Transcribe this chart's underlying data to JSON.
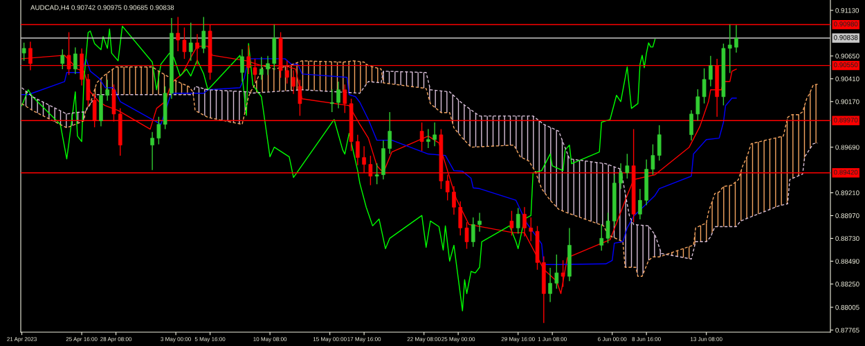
{
  "chart_data": {
    "type": "candlestick",
    "title": "AUDCAD,H4 0.90742 0.90975 0.90685 0.90838",
    "x": [
      "2023-04-21T04:00",
      "2023-04-21T16:00",
      "2023-04-24T04:00",
      "2023-04-24T16:00",
      "2023-04-25T04:00",
      "2023-04-25T16:00",
      "2023-04-26T04:00",
      "2023-04-26T16:00",
      "2023-04-27T04:00",
      "2023-04-27T16:00",
      "2023-04-28T04:00",
      "2023-04-28T16:00",
      "2023-05-01T04:00",
      "2023-05-01T16:00",
      "2023-05-02T04:00",
      "2023-05-02T16:00",
      "2023-05-03T04:00",
      "2023-05-03T16:00",
      "2023-05-04T04:00",
      "2023-05-04T16:00",
      "2023-05-05T04:00",
      "2023-05-05T16:00",
      "2023-05-08T04:00",
      "2023-05-08T16:00",
      "2023-05-09T04:00",
      "2023-05-09T16:00",
      "2023-05-10T04:00",
      "2023-05-10T16:00",
      "2023-05-11T04:00",
      "2023-05-11T16:00",
      "2023-05-12T04:00",
      "2023-05-12T16:00",
      "2023-05-15T04:00",
      "2023-05-15T16:00",
      "2023-05-16T04:00",
      "2023-05-16T16:00",
      "2023-05-17T04:00",
      "2023-05-17T16:00",
      "2023-05-18T04:00",
      "2023-05-18T16:00",
      "2023-05-19T04:00",
      "2023-05-19T16:00",
      "2023-05-22T04:00",
      "2023-05-22T16:00",
      "2023-05-23T04:00",
      "2023-05-23T16:00",
      "2023-05-24T04:00",
      "2023-05-24T16:00",
      "2023-05-25T04:00",
      "2023-05-25T16:00",
      "2023-05-26T04:00",
      "2023-05-26T16:00",
      "2023-05-29T04:00",
      "2023-05-29T16:00",
      "2023-05-30T04:00",
      "2023-05-30T16:00",
      "2023-05-31T04:00",
      "2023-05-31T16:00",
      "2023-06-01T04:00",
      "2023-06-01T16:00",
      "2023-06-02T04:00",
      "2023-06-02T16:00",
      "2023-06-05T04:00",
      "2023-06-05T16:00",
      "2023-06-06T04:00",
      "2023-06-06T16:00",
      "2023-06-07T04:00",
      "2023-06-07T16:00",
      "2023-06-08T04:00",
      "2023-06-08T16:00",
      "2023-06-09T04:00",
      "2023-06-09T16:00",
      "2023-06-12T04:00",
      "2023-06-12T16:00",
      "2023-06-13T04:00",
      "2023-06-13T16:00",
      "2023-06-14T04:00",
      "2023-06-14T16:00",
      "2023-06-15T04:00",
      "2023-06-15T16:00"
    ],
    "ohlc": [
      [
        0.9068,
        0.9079,
        0.906,
        0.9073
      ],
      [
        0.9073,
        0.908,
        0.905,
        0.9057
      ],
      [
        0.9057,
        0.9072,
        0.9051,
        0.90657
      ],
      [
        0.90657,
        0.909,
        0.9045,
        0.90512
      ],
      [
        0.90512,
        0.9074,
        0.9046,
        0.90672
      ],
      [
        0.90672,
        0.9073,
        0.9034,
        0.90403
      ],
      [
        0.90403,
        0.9046,
        0.9012,
        0.90185
      ],
      [
        0.90185,
        0.9025,
        0.899,
        0.89967
      ],
      [
        0.89967,
        0.9031,
        0.8991,
        0.90236
      ],
      [
        0.90236,
        0.904,
        0.9018,
        0.90294
      ],
      [
        0.90294,
        0.9035,
        0.8996,
        0.90039
      ],
      [
        0.90039,
        0.901,
        0.896,
        0.89712
      ],
      [
        0.89712,
        0.8985,
        0.8945,
        0.89785
      ],
      [
        0.89785,
        0.9001,
        0.8972,
        0.8993
      ],
      [
        0.8993,
        0.9033,
        0.8988,
        0.90258
      ],
      [
        0.90258,
        0.9105,
        0.902,
        0.9089
      ],
      [
        0.9089,
        0.9106,
        0.907,
        0.90817
      ],
      [
        0.90817,
        0.9095,
        0.9062,
        0.90694
      ],
      [
        0.90694,
        0.91,
        0.906,
        0.90788
      ],
      [
        0.90788,
        0.9088,
        0.9056,
        0.9073
      ],
      [
        0.9073,
        0.9106,
        0.9068,
        0.90912
      ],
      [
        0.90912,
        0.9098,
        0.904,
        0.90476
      ],
      [
        0.90476,
        0.9072,
        0.9038,
        0.90643
      ],
      [
        0.90643,
        0.9076,
        0.9046,
        0.90527
      ],
      [
        0.90527,
        0.9062,
        0.9038,
        0.90454
      ],
      [
        0.90454,
        0.9064,
        0.904,
        0.90512
      ],
      [
        0.90512,
        0.9065,
        0.9045,
        0.9057
      ],
      [
        0.9057,
        0.9098,
        0.905,
        0.90839
      ],
      [
        0.90839,
        0.909,
        0.9042,
        0.90497
      ],
      [
        0.90497,
        0.906,
        0.9036,
        0.90425
      ],
      [
        0.90425,
        0.905,
        0.9025,
        0.9033
      ],
      [
        0.9033,
        0.904,
        0.9002,
        0.90148
      ],
      [
        0.90148,
        0.903,
        0.9006,
        0.9016
      ],
      [
        0.9016,
        0.9038,
        0.901,
        0.90294
      ],
      [
        0.90294,
        0.9035,
        0.9005,
        0.90148
      ],
      [
        0.90148,
        0.902,
        0.8965,
        0.89749
      ],
      [
        0.89749,
        0.8982,
        0.895,
        0.89581
      ],
      [
        0.89581,
        0.897,
        0.8942,
        0.89509
      ],
      [
        0.89509,
        0.896,
        0.8929,
        0.89385
      ],
      [
        0.89385,
        0.8952,
        0.893,
        0.894
      ],
      [
        0.894,
        0.8976,
        0.8935,
        0.89676
      ],
      [
        0.89676,
        0.9006,
        0.8962,
        0.89858
      ],
      [
        0.89858,
        0.8995,
        0.8965,
        0.89749
      ],
      [
        0.89749,
        0.8988,
        0.8968,
        0.8977
      ],
      [
        0.8977,
        0.8995,
        0.897,
        0.8982
      ],
      [
        0.8982,
        0.8988,
        0.8925,
        0.89334
      ],
      [
        0.89334,
        0.894,
        0.8913,
        0.89218
      ],
      [
        0.89218,
        0.8928,
        0.8898,
        0.89058
      ],
      [
        0.89058,
        0.8912,
        0.8876,
        0.8884
      ],
      [
        0.8884,
        0.889,
        0.8862,
        0.88694
      ],
      [
        0.88694,
        0.8895,
        0.8864,
        0.88876
      ],
      [
        0.88876,
        0.89,
        0.888,
        0.88913
      ],
      [
        0.88913,
        0.8902,
        0.8876,
        0.8884
      ],
      [
        0.8884,
        0.8905,
        0.8878,
        0.88985
      ],
      [
        0.88985,
        0.8906,
        0.8875,
        0.8884
      ],
      [
        0.8884,
        0.8895,
        0.887,
        0.88804
      ],
      [
        0.88804,
        0.8886,
        0.884,
        0.88476
      ],
      [
        0.88476,
        0.8854,
        0.8784,
        0.88149
      ],
      [
        0.88149,
        0.8842,
        0.8806,
        0.88258
      ],
      [
        0.88258,
        0.8856,
        0.882,
        0.88367
      ],
      [
        0.88367,
        0.885,
        0.8822,
        0.88331
      ],
      [
        0.88331,
        0.8884,
        0.8828,
        0.88658
      ],
      [
        0.88658,
        0.8888,
        0.886,
        0.88731
      ],
      [
        0.88731,
        0.89,
        0.8868,
        0.88913
      ],
      [
        0.88913,
        0.894,
        0.8886,
        0.89312
      ],
      [
        0.89312,
        0.8952,
        0.8925,
        0.89421
      ],
      [
        0.89421,
        0.8962,
        0.8936,
        0.89494
      ],
      [
        0.89494,
        0.8988,
        0.889,
        0.88985
      ],
      [
        0.88985,
        0.8925,
        0.8893,
        0.89131
      ],
      [
        0.89131,
        0.8956,
        0.8908,
        0.89458
      ],
      [
        0.89458,
        0.8972,
        0.894,
        0.89603
      ],
      [
        0.89603,
        0.8992,
        0.8955,
        0.89821
      ],
      [
        0.89821,
        0.9008,
        0.8976,
        0.90039
      ],
      [
        0.90039,
        0.903,
        0.8997,
        0.90221
      ],
      [
        0.90221,
        0.9052,
        0.9015,
        0.90403
      ],
      [
        0.90403,
        0.9065,
        0.9033,
        0.90548
      ],
      [
        0.90548,
        0.9062,
        0.9001,
        0.90221
      ],
      [
        0.90221,
        0.9078,
        0.9013,
        0.9073
      ],
      [
        0.9073,
        0.9098,
        0.9047,
        0.90766
      ],
      [
        0.90742,
        0.90975,
        0.90685,
        0.90838
      ]
    ],
    "colors": [
      "#32cd32",
      "#ff0000",
      "#32cd32",
      "#ff0000",
      "#32cd32",
      "#ff0000",
      "#ff0000",
      "#ff0000",
      "#32cd32",
      "#32cd32",
      "#ff0000",
      "#ff0000",
      "#32cd32",
      "#32cd32",
      "#32cd32",
      "#32cd32",
      "#ff0000",
      "#ff0000",
      "#32cd32",
      "#ff0000",
      "#32cd32",
      "#ff0000",
      "#32cd32",
      "#ff0000",
      "#ff0000",
      "#32cd32",
      "#32cd32",
      "#32cd32",
      "#ff0000",
      "#ff0000",
      "#ff0000",
      "#ff0000",
      "#32cd32",
      "#32cd32",
      "#ff0000",
      "#ff0000",
      "#ff0000",
      "#ff0000",
      "#ff0000",
      "#32cd32",
      "#32cd32",
      "#32cd32",
      "#ff0000",
      "#32cd32",
      "#32cd32",
      "#ff0000",
      "#ff0000",
      "#ff0000",
      "#ff0000",
      "#ff0000",
      "#32cd32",
      "#32cd32",
      "#ff0000",
      "#32cd32",
      "#ff0000",
      "#ff0000",
      "#ff0000",
      "#ff0000",
      "#32cd32",
      "#32cd32",
      "#ff0000",
      "#32cd32",
      "#32cd32",
      "#32cd32",
      "#32cd32",
      "#32cd32",
      "#32cd32",
      "#ff0000",
      "#32cd32",
      "#32cd32",
      "#32cd32",
      "#32cd32",
      "#32cd32",
      "#32cd32",
      "#32cd32",
      "#32cd32",
      "#ff0000",
      "#32cd32",
      "#32cd32",
      "#32cd32"
    ],
    "series": [
      {
        "type": "line",
        "color": "#f4a460",
        "line_style": "dashed",
        "x": [
          "2023-04-21T00:00",
          "2023-04-21T20:00",
          "2023-04-24T12:00",
          "2023-04-25T04:00",
          "2023-04-25T20:00",
          "2023-04-26T00:00",
          "2023-04-26T08:00",
          "2023-04-26T20:00",
          "2023-04-27T12:00",
          "2023-04-28T08:00",
          "2023-05-01T04:00",
          "2023-05-01T20:00",
          "2023-05-02T12:00",
          "2023-05-03T08:00",
          "2023-05-04T00:00",
          "2023-05-04T08:00",
          "2023-05-04T12:00",
          "2023-05-05T12:00",
          "2023-05-08T04:00",
          "2023-05-08T16:00",
          "2023-05-08T20:00",
          "2023-05-09T00:00",
          "2023-05-09T20:00",
          "2023-05-10T16:00",
          "2023-05-11T20:00",
          "2023-05-12T20:00",
          "2023-05-16T00:00",
          "2023-05-16T20:00",
          "2023-05-17T16:00",
          "2023-05-18T00:00",
          "2023-05-19T00:00",
          "2023-05-19T04:00",
          "2023-05-22T12:00",
          "2023-05-22T20:00",
          "2023-05-23T16:00",
          "2023-05-24T08:00",
          "2023-05-24T16:00",
          "2023-05-25T08:00",
          "2023-05-26T00:00",
          "2023-05-29T08:00",
          "2023-05-29T20:00",
          "2023-05-30T12:00",
          "2023-05-31T00:00",
          "2023-05-31T12:00",
          "2023-06-01T04:00",
          "2023-06-01T20:00",
          "2023-06-02T12:00",
          "2023-06-05T08:00",
          "2023-06-05T16:00",
          "2023-06-06T20:00",
          "2023-06-07T00:00",
          "2023-06-07T20:00",
          "2023-06-08T00:00",
          "2023-06-08T08:00",
          "2023-06-08T20:00",
          "2023-06-09T04:00",
          "2023-06-09T16:00",
          "2023-06-12T00:00",
          "2023-06-12T08:00",
          "2023-06-12T12:00",
          "2023-06-12T20:00",
          "2023-06-13T08:00",
          "2023-06-13T12:00",
          "2023-06-14T00:00",
          "2023-06-14T08:00",
          "2023-06-14T16:00",
          "2023-06-15T08:00",
          "2023-06-15T20:00",
          "2023-06-16T04:00",
          "2023-06-16T12:00",
          "2023-06-16T20:00",
          "2023-06-19T08:00",
          "2023-06-19T16:00",
          "2023-06-20T00:00",
          "2023-06-20T12:00",
          "2023-06-20T20:00",
          "2023-06-21T04:00",
          "2023-06-21T08:00",
          "2023-06-21T16:00",
          "2023-06-22T00:00"
        ],
        "values": [
          0.90148,
          0.90076,
          0.89894,
          0.8993,
          0.89967,
          0.9009,
          0.90148,
          0.90367,
          0.90454,
          0.90534,
          0.90534,
          0.90476,
          0.90425,
          0.90367,
          0.9033,
          0.90272,
          0.90076,
          0.90003,
          0.8993,
          0.90221,
          0.90279,
          0.90308,
          0.90548,
          0.90512,
          0.90548,
          0.90599,
          0.90585,
          0.90599,
          0.90585,
          0.90548,
          0.90512,
          0.90367,
          0.90308,
          0.90148,
          0.90054,
          0.90054,
          0.89894,
          0.89785,
          0.8969,
          0.89712,
          0.89589,
          0.89545,
          0.89436,
          0.89254,
          0.89131,
          0.89036,
          0.88999,
          0.88862,
          0.88767,
          0.88695,
          0.88426,
          0.88426,
          0.88331,
          0.88331,
          0.88498,
          0.88535,
          0.88535,
          0.88644,
          0.88658,
          0.8884,
          0.88862,
          0.88891,
          0.89007,
          0.89203,
          0.89218,
          0.89276,
          0.89291,
          0.89349,
          0.89494,
          0.89589,
          0.89727,
          0.89807,
          0.90003,
          0.90032,
          0.90032,
          0.90061,
          0.90207,
          0.90243,
          0.90345,
          0.90352
        ]
      },
      {
        "type": "line",
        "color": "#d8bfd8",
        "line_style": "dashed",
        "x": [
          "2023-04-21T00:00",
          "2023-04-21T20:00",
          "2023-04-24T12:00",
          "2023-04-25T04:00",
          "2023-04-25T20:00",
          "2023-04-26T00:00",
          "2023-04-26T20:00",
          "2023-05-04T08:00",
          "2023-05-04T12:00",
          "2023-05-05T12:00",
          "2023-05-08T16:00",
          "2023-05-08T20:00",
          "2023-05-12T20:00",
          "2023-05-17T08:00",
          "2023-05-18T00:00",
          "2023-05-19T00:00",
          "2023-05-19T04:00",
          "2023-05-22T12:00",
          "2023-05-22T20:00",
          "2023-05-24T08:00",
          "2023-05-25T08:00",
          "2023-05-26T16:00",
          "2023-05-30T20:00",
          "2023-05-31T16:00",
          "2023-06-01T20:00",
          "2023-06-02T16:00",
          "2023-06-05T12:00",
          "2023-06-06T16:00",
          "2023-06-07T08:00",
          "2023-06-07T16:00",
          "2023-06-08T20:00",
          "2023-06-09T08:00",
          "2023-06-09T20:00",
          "2023-06-12T04:00",
          "2023-06-12T12:00",
          "2023-06-13T08:00",
          "2023-06-13T16:00",
          "2023-06-14T00:00",
          "2023-06-15T16:00",
          "2023-06-16T00:00",
          "2023-06-16T16:00",
          "2023-06-19T00:00",
          "2023-06-19T16:00",
          "2023-06-19T20:00",
          "2023-06-20T20:00",
          "2023-06-21T00:00",
          "2023-06-21T16:00",
          "2023-06-22T00:00"
        ],
        "values": [
          0.90316,
          0.90221,
          0.90039,
          0.90054,
          0.90061,
          0.90076,
          0.90243,
          0.90243,
          0.9033,
          0.90294,
          0.90272,
          0.90258,
          0.90294,
          0.90258,
          0.90381,
          0.90367,
          0.9049,
          0.90476,
          0.90294,
          0.90272,
          0.90148,
          0.90018,
          0.90018,
          0.8993,
          0.89858,
          0.89567,
          0.89516,
          0.89458,
          0.88971,
          0.88876,
          0.88862,
          0.88767,
          0.88571,
          0.88513,
          0.88695,
          0.88695,
          0.88745,
          0.88854,
          0.88854,
          0.88913,
          0.88949,
          0.89073,
          0.89094,
          0.89349,
          0.89407,
          0.89589,
          0.89727,
          0.89734
        ]
      },
      {
        "type": "line",
        "color": "#00ff00",
        "x": [
          "2023-04-21T00:00",
          "2023-04-21T12:00",
          "2023-04-21T20:00",
          "2023-04-24T00:00",
          "2023-04-24T12:00",
          "2023-04-24T16:00",
          "2023-04-25T04:00",
          "2023-04-25T08:00",
          "2023-04-25T16:00",
          "2023-04-25T20:00",
          "2023-04-26T04:00",
          "2023-04-26T08:00",
          "2023-04-26T16:00",
          "2023-04-27T04:00",
          "2023-04-27T08:00",
          "2023-04-27T16:00",
          "2023-04-27T20:00",
          "2023-04-28T00:00",
          "2023-04-28T12:00",
          "2023-04-28T20:00",
          "2023-05-01T04:00",
          "2023-05-01T12:00",
          "2023-05-01T20:00",
          "2023-05-02T12:00",
          "2023-05-02T20:00",
          "2023-05-03T08:00",
          "2023-05-03T20:00",
          "2023-05-04T04:00",
          "2023-05-04T16:00",
          "2023-05-05T04:00",
          "2023-05-05T12:00",
          "2023-05-08T00:00",
          "2023-05-08T12:00",
          "2023-05-08T16:00",
          "2023-05-09T00:00",
          "2023-05-09T16:00",
          "2023-05-10T08:00",
          "2023-05-10T16:00",
          "2023-05-11T20:00",
          "2023-05-12T04:00",
          "2023-05-15T08:00",
          "2023-05-16T00:00",
          "2023-05-16T04:00",
          "2023-05-16T12:00",
          "2023-05-17T04:00",
          "2023-05-17T08:00",
          "2023-05-17T20:00",
          "2023-05-18T08:00",
          "2023-05-18T20:00",
          "2023-05-19T08:00",
          "2023-05-19T16:00",
          "2023-05-22T04:00",
          "2023-05-22T12:00",
          "2023-05-22T20:00",
          "2023-05-23T12:00",
          "2023-05-23T20:00",
          "2023-05-24T00:00",
          "2023-05-24T08:00",
          "2023-05-24T16:00",
          "2023-05-25T08:00",
          "2023-05-25T12:00",
          "2023-05-25T16:00",
          "2023-05-26T00:00",
          "2023-05-26T08:00",
          "2023-05-26T16:00",
          "2023-05-26T20:00",
          "2023-05-29T00:00",
          "2023-05-29T12:00",
          "2023-05-29T16:00",
          "2023-05-30T04:00",
          "2023-05-30T16:00",
          "2023-05-30T20:00",
          "2023-05-31T12:00",
          "2023-06-01T04:00",
          "2023-06-01T08:00",
          "2023-06-02T04:00",
          "2023-06-02T08:00",
          "2023-06-02T16:00",
          "2023-06-02T20:00",
          "2023-06-05T00:00",
          "2023-06-05T04:00",
          "2023-06-05T20:00",
          "2023-06-06T08:00",
          "2023-06-06T16:00",
          "2023-06-07T04:00",
          "2023-06-07T12:00",
          "2023-06-08T00:00",
          "2023-06-08T04:00",
          "2023-06-08T08:00",
          "2023-06-08T12:00",
          "2023-06-08T16:00",
          "2023-06-08T20:00",
          "2023-06-09T00:00",
          "2023-06-09T04:00",
          "2023-06-09T08:00"
        ],
        "values": [
          0.90127,
          0.90294,
          0.90221,
          0.8993,
          0.89567,
          0.89734,
          0.90272,
          0.89807,
          0.89749,
          0.90388,
          0.90897,
          0.90912,
          0.90781,
          0.90716,
          0.90854,
          0.9073,
          0.90934,
          0.90679,
          0.90599,
          0.90963,
          0.90585,
          0.90294,
          0.90563,
          0.90679,
          0.90635,
          0.90439,
          0.90512,
          0.90439,
          0.90606,
          0.90461,
          0.90294,
          0.90657,
          0.90025,
          0.90781,
          0.90345,
          0.90221,
          0.89589,
          0.8969,
          0.89589,
          0.89371,
          0.89981,
          0.89661,
          0.89618,
          0.89836,
          0.89443,
          0.89312,
          0.89058,
          0.88862,
          0.88934,
          0.88622,
          0.88731,
          0.88971,
          0.88636,
          0.88913,
          0.88854,
          0.88607,
          0.88862,
          0.88491,
          0.88658,
          0.87968,
          0.88295,
          0.88149,
          0.88382,
          0.88367,
          0.88426,
          0.88695,
          0.88862,
          0.88695,
          0.88622,
          0.88934,
          0.88971,
          0.89421,
          0.89443,
          0.89618,
          0.89494,
          0.89443,
          0.89661,
          0.89712,
          0.89516,
          0.8964,
          0.89952,
          0.89981,
          0.90236,
          0.9017,
          0.90534,
          0.90098,
          0.90149,
          0.90563,
          0.90657,
          0.90527,
          0.90679,
          0.90788,
          0.90745,
          0.90745,
          0.90825
        ]
      },
      {
        "type": "line",
        "color": "#0000ff",
        "x": [
          "2023-04-21T00:00",
          "2023-04-21T12:00",
          "2023-04-24T08:00",
          "2023-04-24T12:00",
          "2023-04-25T16:00",
          "2023-04-26T00:00",
          "2023-04-26T08:00",
          "2023-04-27T00:00",
          "2023-04-27T12:00",
          "2023-04-28T04:00",
          "2023-04-28T16:00",
          "2023-05-01T20:00",
          "2023-05-02T12:00",
          "2023-05-02T16:00",
          "2023-05-05T04:00",
          "2023-05-05T12:00",
          "2023-05-08T00:00",
          "2023-05-08T08:00",
          "2023-05-08T16:00",
          "2023-05-11T12:00",
          "2023-05-12T00:00",
          "2023-05-12T12:00",
          "2023-05-12T20:00",
          "2023-05-16T08:00",
          "2023-05-16T12:00",
          "2023-05-17T00:00",
          "2023-05-17T08:00",
          "2023-05-18T00:00",
          "2023-05-18T16:00",
          "2023-05-19T20:00",
          "2023-05-22T16:00",
          "2023-05-24T00:00",
          "2023-05-24T16:00",
          "2023-05-25T08:00",
          "2023-05-26T00:00",
          "2023-05-26T04:00",
          "2023-05-26T16:00",
          "2023-05-29T12:00",
          "2023-05-30T08:00",
          "2023-05-31T00:00",
          "2023-05-31T12:00",
          "2023-05-31T16:00",
          "2023-06-01T20:00",
          "2023-06-05T12:00",
          "2023-06-06T00:00",
          "2023-06-06T04:00",
          "2023-06-06T20:00",
          "2023-06-07T04:00",
          "2023-06-07T16:00",
          "2023-06-09T08:00",
          "2023-06-09T16:00",
          "2023-06-12T04:00",
          "2023-06-12T08:00",
          "2023-06-13T08:00",
          "2023-06-14T08:00",
          "2023-06-14T16:00",
          "2023-06-14T20:00",
          "2023-06-15T08:00",
          "2023-06-15T16:00"
        ],
        "values": [
          0.90243,
          0.90243,
          0.90381,
          0.90476,
          0.90476,
          0.90621,
          0.9049,
          0.90418,
          0.90316,
          0.90316,
          0.9017,
          0.8993,
          0.90199,
          0.90258,
          0.90258,
          0.90294,
          0.90316,
          0.90418,
          0.90621,
          0.90621,
          0.90563,
          0.90563,
          0.90461,
          0.90425,
          0.90243,
          0.90221,
          0.90163,
          0.89981,
          0.89763,
          0.89763,
          0.89618,
          0.89603,
          0.89443,
          0.89436,
          0.89363,
          0.89262,
          0.89254,
          0.89131,
          0.88891,
          0.88767,
          0.88673,
          0.88455,
          0.88455,
          0.88462,
          0.88498,
          0.8868,
          0.88695,
          0.8884,
          0.88963,
          0.89182,
          0.89254,
          0.89385,
          0.89618,
          0.8977,
          0.89785,
          0.89952,
          0.90127,
          0.90207,
          0.90207
        ]
      },
      {
        "type": "line",
        "color": "#ff0000",
        "x": [
          "2023-04-21T00:00",
          "2023-04-24T08:00",
          "2023-04-25T08:00",
          "2023-04-25T20:00",
          "2023-04-26T08:00",
          "2023-04-27T00:00",
          "2023-04-27T12:00",
          "2023-04-28T12:00",
          "2023-05-01T00:00",
          "2023-05-01T12:00",
          "2023-05-02T04:00",
          "2023-05-02T16:00",
          "2023-05-03T12:00",
          "2023-05-04T04:00",
          "2023-05-04T16:00",
          "2023-05-05T12:00",
          "2023-05-05T20:00",
          "2023-05-08T12:00",
          "2023-05-09T16:00",
          "2023-05-11T12:00",
          "2023-05-12T08:00",
          "2023-05-12T20:00",
          "2023-05-16T12:00",
          "2023-05-17T08:00",
          "2023-05-18T00:00",
          "2023-05-18T16:00",
          "2023-05-19T04:00",
          "2023-05-19T20:00",
          "2023-05-22T16:00",
          "2023-05-23T12:00",
          "2023-05-24T04:00",
          "2023-05-24T20:00",
          "2023-05-25T20:00",
          "2023-05-29T08:00",
          "2023-05-30T04:00",
          "2023-05-31T16:00",
          "2023-06-01T16:00",
          "2023-06-02T00:00",
          "2023-06-02T12:00",
          "2023-06-05T20:00",
          "2023-06-07T04:00",
          "2023-06-07T16:00",
          "2023-06-09T08:00",
          "2023-06-12T00:00",
          "2023-06-12T20:00",
          "2023-06-13T12:00",
          "2023-06-13T16:00",
          "2023-06-14T12:00",
          "2023-06-14T16:00",
          "2023-06-15T04:00",
          "2023-06-15T08:00",
          "2023-06-15T16:00"
        ],
        "values": [
          0.90621,
          0.90657,
          0.90512,
          0.9049,
          0.90272,
          0.9017,
          0.90127,
          0.90076,
          0.8988,
          0.90098,
          0.9017,
          0.90367,
          0.90461,
          0.90635,
          0.90752,
          0.90752,
          0.90657,
          0.90599,
          0.90548,
          0.90548,
          0.90512,
          0.90199,
          0.90127,
          0.8993,
          0.89785,
          0.89494,
          0.89421,
          0.8964,
          0.89807,
          0.89734,
          0.89443,
          0.89152,
          0.88876,
          0.88789,
          0.88789,
          0.88404,
          0.8828,
          0.88149,
          0.88527,
          0.88716,
          0.89182,
          0.89349,
          0.894,
          0.8969,
          0.89909,
          0.9017,
          0.90294,
          0.90294,
          0.90381,
          0.90381,
          0.9049,
          0.90512
        ]
      }
    ],
    "xlim": [
      "2023-04-20T22:00",
      "2023-06-23T00:00"
    ],
    "xticks": [
      {
        "value": "2023-04-21T00:00",
        "label": "21 Apr 2023"
      },
      {
        "value": "2023-04-25T16:00",
        "label": "25 Apr 16:00"
      },
      {
        "value": "2023-04-28T08:00",
        "label": "28 Apr 08:00"
      },
      {
        "value": "2023-05-03T00:00",
        "label": "3 May 00:00"
      },
      {
        "value": "2023-05-05T16:00",
        "label": "5 May 16:00"
      },
      {
        "value": "2023-05-10T08:00",
        "label": "10 May 08:00"
      },
      {
        "value": "2023-05-15T00:00",
        "label": "15 May 00:00"
      },
      {
        "value": "2023-05-17T16:00",
        "label": "17 May 16:00"
      },
      {
        "value": "2023-05-22T08:00",
        "label": "22 May 08:00"
      },
      {
        "value": "2023-05-25T00:00",
        "label": "25 May 00:00"
      },
      {
        "value": "2023-05-29T16:00",
        "label": "29 May 16:00"
      },
      {
        "value": "2023-06-01T08:00",
        "label": "1 Jun 08:00"
      },
      {
        "value": "2023-06-06T00:00",
        "label": "6 Jun 00:00"
      },
      {
        "value": "2023-06-08T16:00",
        "label": "8 Jun 16:00"
      },
      {
        "value": "2023-06-13T08:00",
        "label": "13 Jun 08:00"
      }
    ],
    "ylim": [
      0.87743,
      0.91239
    ],
    "yticks": [
      {
        "value": 0.9113,
        "label": "0.91130"
      },
      {
        "value": 0.9065,
        "label": "0.90650"
      },
      {
        "value": 0.9041,
        "label": "0.90410"
      },
      {
        "value": 0.9017,
        "label": "0.90170"
      },
      {
        "value": 0.8969,
        "label": "0.89690"
      },
      {
        "value": 0.8921,
        "label": "0.89210"
      },
      {
        "value": 0.8897,
        "label": "0.88970"
      },
      {
        "value": 0.8873,
        "label": "0.88730"
      },
      {
        "value": 0.8849,
        "label": "0.88490"
      },
      {
        "value": 0.8825,
        "label": "0.88250"
      },
      {
        "value": 0.88005,
        "label": "0.88005"
      },
      {
        "value": 0.87765,
        "label": "0.87765"
      }
    ],
    "ref_lines": [
      {
        "axis": "y",
        "value": 0.9098,
        "label": "0.90980",
        "color": "#ff0000"
      },
      {
        "axis": "y",
        "value": 0.90838,
        "label": "0.90838",
        "color": "#c8c8c8"
      },
      {
        "axis": "y",
        "value": 0.9055,
        "label": "0.90550",
        "color": "#ff0000"
      },
      {
        "axis": "y",
        "value": 0.8997,
        "label": "0.89970",
        "color": "#ff0000"
      },
      {
        "axis": "y",
        "value": 0.8942,
        "label": "0.89420",
        "color": "#ff0000"
      }
    ],
    "grid": false,
    "legend": false
  }
}
